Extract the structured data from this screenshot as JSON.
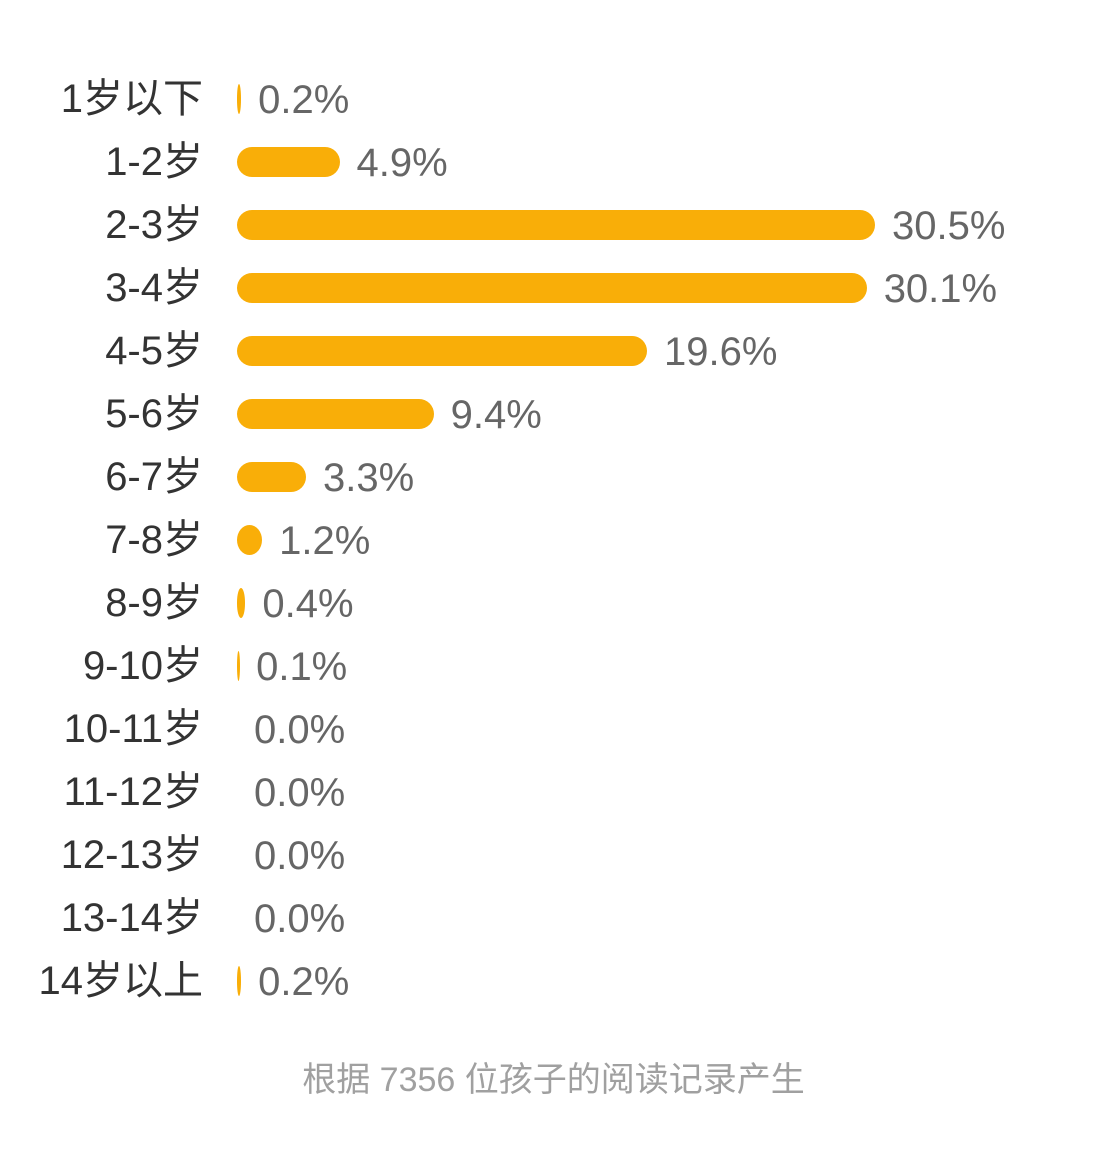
{
  "chart_data": {
    "type": "bar",
    "orientation": "horizontal",
    "categories": [
      "1岁以下",
      "1-2岁",
      "2-3岁",
      "3-4岁",
      "4-5岁",
      "5-6岁",
      "6-7岁",
      "7-8岁",
      "8-9岁",
      "9-10岁",
      "10-11岁",
      "11-12岁",
      "12-13岁",
      "13-14岁",
      "14岁以上"
    ],
    "values": [
      0.2,
      4.9,
      30.5,
      30.1,
      19.6,
      9.4,
      3.3,
      1.2,
      0.4,
      0.1,
      0.0,
      0.0,
      0.0,
      0.0,
      0.2
    ],
    "value_labels": [
      "0.2%",
      "4.9%",
      "30.5%",
      "30.1%",
      "19.6%",
      "9.4%",
      "3.3%",
      "1.2%",
      "0.4%",
      "0.1%",
      "0.0%",
      "0.0%",
      "0.0%",
      "0.0%",
      "0.2%"
    ],
    "unit": "%",
    "bar_color": "#F9AE08",
    "grid": false,
    "legend": "none"
  },
  "footer": "根据 7356 位孩子的阅读记录产生"
}
